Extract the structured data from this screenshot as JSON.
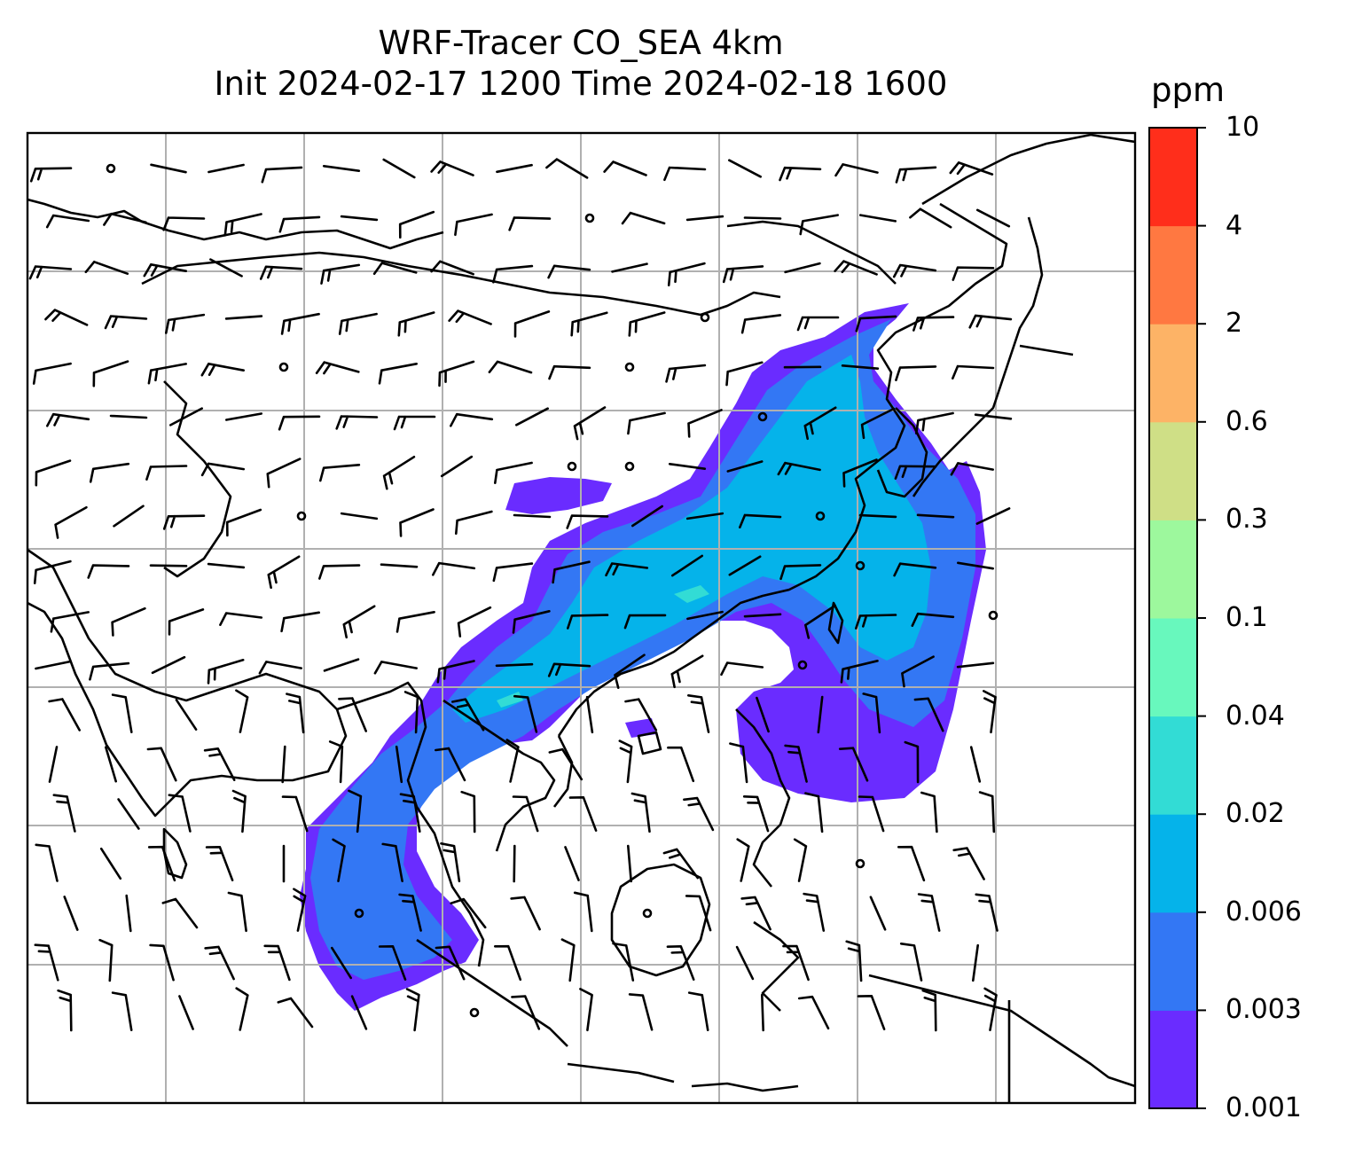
{
  "title": {
    "line1": "WRF-Tracer CO_SEA 4km",
    "line2": "Init 2024-02-17 1200 Time 2024-02-18 1600"
  },
  "colorbar": {
    "unit": "ppm",
    "levels": [
      "0.001",
      "0.003",
      "0.006",
      "0.02",
      "0.04",
      "0.1",
      "0.3",
      "0.6",
      "2",
      "4",
      "10"
    ],
    "colors": [
      "#6a2cff",
      "#3377f4",
      "#05b3ea",
      "#32dcd5",
      "#68f8bd",
      "#9df89d",
      "#cfdf86",
      "#fdb366",
      "#ff7841",
      "#ff2e1b"
    ]
  },
  "map": {
    "land_outline_color": "#000000",
    "gridline_color": "#b0b0b0",
    "wind_barb_color": "#000000"
  }
}
